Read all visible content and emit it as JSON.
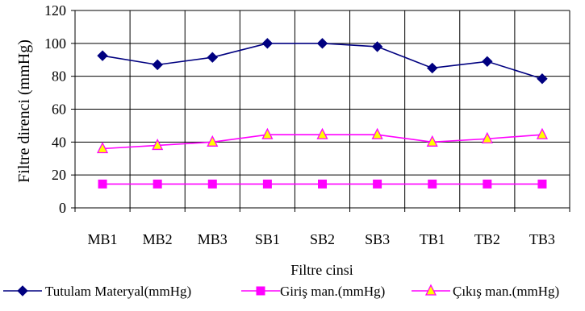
{
  "chart_data": {
    "type": "line",
    "title": "",
    "xlabel": "Filtre cinsi",
    "ylabel": "Filtre direnci (mmHg)",
    "ylim": [
      0,
      120
    ],
    "yticks": [
      "0",
      "20",
      "40",
      "60",
      "80",
      "100",
      "120"
    ],
    "categories": [
      "MB1",
      "MB2",
      "MB3",
      "SB1",
      "SB2",
      "SB3",
      "TB1",
      "TB2",
      "TB3"
    ],
    "grid": "vertical and horizontal",
    "legend_position": "bottom",
    "series": [
      {
        "name": "Tutulam Materyal(mmHg)",
        "color": "#000080",
        "marker": "diamond",
        "values": [
          92.5,
          87,
          91.5,
          100,
          100,
          98,
          85,
          89,
          78.5
        ]
      },
      {
        "name": "Giriş man.(mmHg)",
        "color": "#FF00FF",
        "marker": "square",
        "values": [
          14.5,
          14.5,
          14.5,
          14.5,
          14.5,
          14.5,
          14.5,
          14.5,
          14.5
        ]
      },
      {
        "name": "Çıkış man.(mmHg)",
        "color": "#FF00FF",
        "marker_fill": "#FFFF00",
        "marker": "triangle",
        "values": [
          36,
          38,
          40,
          44.5,
          44.5,
          44.5,
          40,
          42,
          44.5
        ]
      }
    ]
  }
}
